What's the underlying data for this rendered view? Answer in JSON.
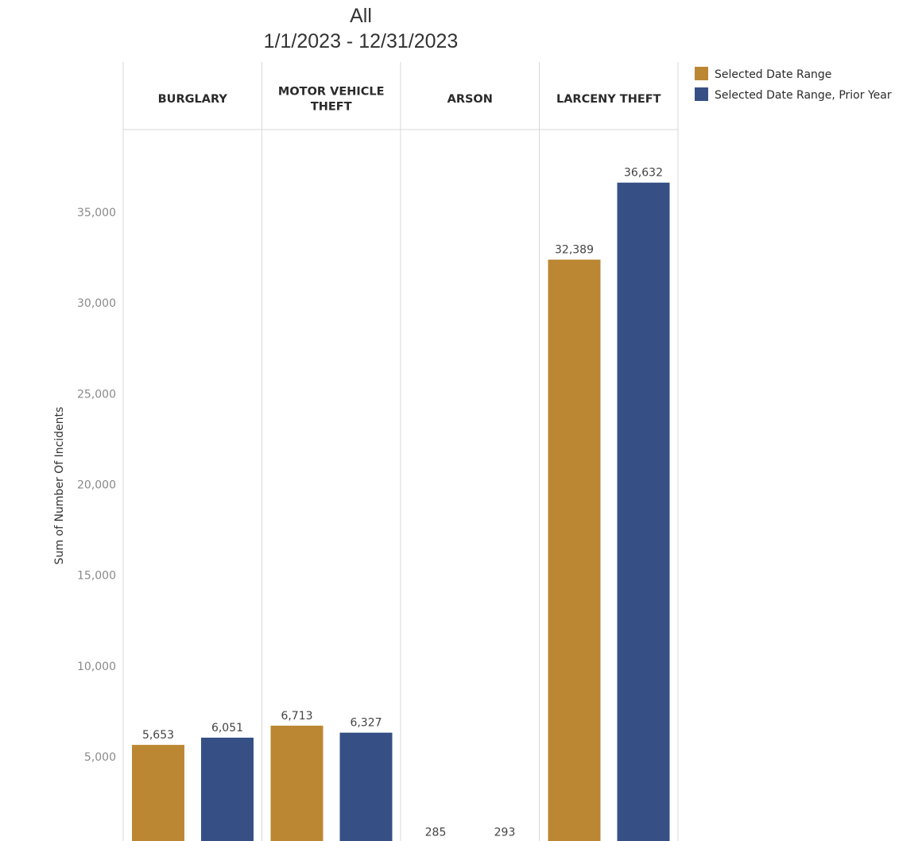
{
  "chart_data": {
    "type": "bar",
    "title": [
      "All",
      "1/1/2023 - 12/31/2023"
    ],
    "ylabel": "Sum of Number Of Incidents",
    "xlabel": "",
    "ylim": [
      0,
      38000
    ],
    "yticks": [
      5000,
      10000,
      15000,
      20000,
      25000,
      30000,
      35000
    ],
    "ytick_labels": [
      "5,000",
      "10,000",
      "15,000",
      "20,000",
      "25,000",
      "30,000",
      "35,000"
    ],
    "grid": false,
    "legend_position": "top-right",
    "categories": [
      [
        "BURGLARY"
      ],
      [
        "MOTOR VEHICLE",
        "THEFT"
      ],
      [
        "ARSON"
      ],
      [
        "LARCENY THEFT"
      ]
    ],
    "series": [
      {
        "name": "Selected Date Range",
        "color": "#BC8733",
        "values": [
          5653,
          6713,
          285,
          32389
        ],
        "labels": [
          "5,653",
          "6,713",
          "285",
          "32,389"
        ]
      },
      {
        "name": "Selected Date Range, Prior Year",
        "color": "#365086",
        "values": [
          6051,
          6327,
          293,
          36632
        ],
        "labels": [
          "6,051",
          "6,327",
          "293",
          "36,632"
        ]
      }
    ]
  }
}
